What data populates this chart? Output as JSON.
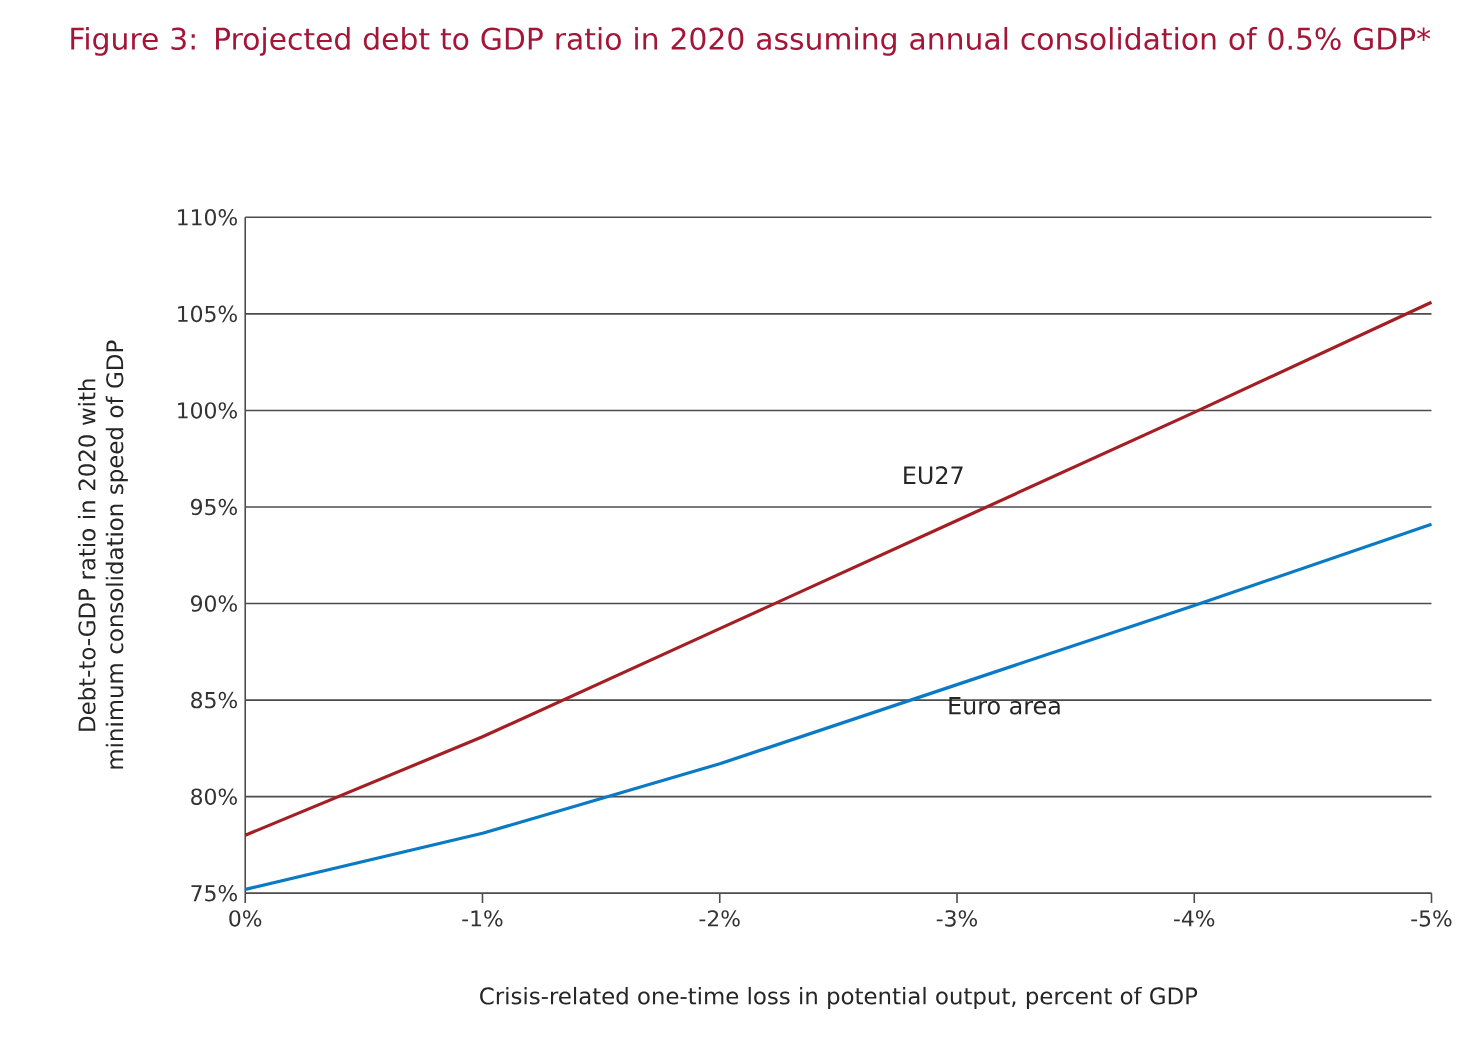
{
  "chart_data": {
    "type": "line",
    "title": "Figure 3: Projected debt to GDP ratio in 2020 assuming annual consolidation of 0.5% GDP*",
    "xlabel": "Crisis-related one-time loss in potential output, percent of GDP",
    "ylabel": "Debt-to-GDP ratio in 2020 with minimum consolidation speed of GDP",
    "x": [
      0,
      -1,
      -2,
      -3,
      -4,
      -5
    ],
    "series": [
      {
        "name": "EU27",
        "color": "#a31f24",
        "values": [
          78.0,
          83.1,
          88.7,
          94.3,
          99.9,
          105.6
        ]
      },
      {
        "name": "Euro area",
        "color": "#0a7ac4",
        "values": [
          75.2,
          78.1,
          81.7,
          85.8,
          89.9,
          94.1
        ]
      }
    ],
    "xlim": [
      0,
      -5
    ],
    "xticks": [
      {
        "value": 0,
        "label": "0%"
      },
      {
        "value": -1,
        "label": "-1%"
      },
      {
        "value": -2,
        "label": "-2%"
      },
      {
        "value": -3,
        "label": "-3%"
      },
      {
        "value": -4,
        "label": "-4%"
      },
      {
        "value": -5,
        "label": "-5%"
      }
    ],
    "ylim": [
      75,
      110
    ],
    "yticks": [
      {
        "value": 75,
        "label": "75%"
      },
      {
        "value": 80,
        "label": "80%"
      },
      {
        "value": 85,
        "label": "85%"
      },
      {
        "value": 90,
        "label": "90%"
      },
      {
        "value": 95,
        "label": "95%"
      },
      {
        "value": 100,
        "label": "100%"
      },
      {
        "value": 105,
        "label": "105%"
      },
      {
        "value": 110,
        "label": "110%"
      }
    ],
    "grid": "y",
    "legend": false,
    "marker": "none",
    "line_style": "solid"
  }
}
